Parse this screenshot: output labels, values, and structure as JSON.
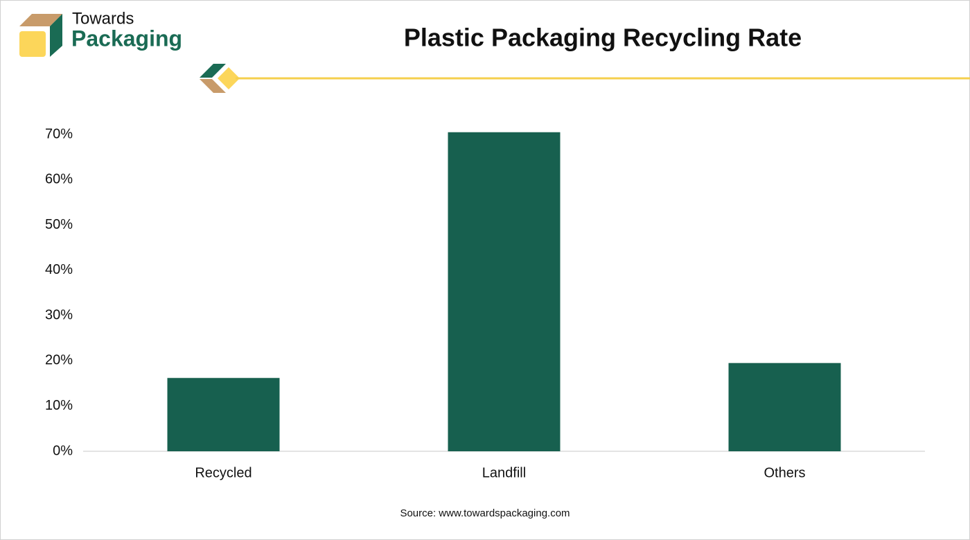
{
  "logo": {
    "line1": "Towards",
    "line2": "Packaging"
  },
  "chart_data": {
    "type": "bar",
    "title": "Plastic Packaging Recycling Rate",
    "categories": [
      "Recycled",
      "Landfill",
      "Others"
    ],
    "values": [
      16.2,
      70.5,
      19.5
    ],
    "color": "#17604f",
    "ylim": [
      0,
      75
    ],
    "yticks": [
      {
        "value": 0,
        "label": "0%"
      },
      {
        "value": 10,
        "label": "10%"
      },
      {
        "value": 20,
        "label": "20%"
      },
      {
        "value": 30,
        "label": "30%"
      },
      {
        "value": 40,
        "label": "40%"
      },
      {
        "value": 50,
        "label": "50%"
      },
      {
        "value": 60,
        "label": "60%"
      },
      {
        "value": 70,
        "label": "70%"
      }
    ],
    "grid": false,
    "source": "Source: www.towardspackaging.com"
  }
}
